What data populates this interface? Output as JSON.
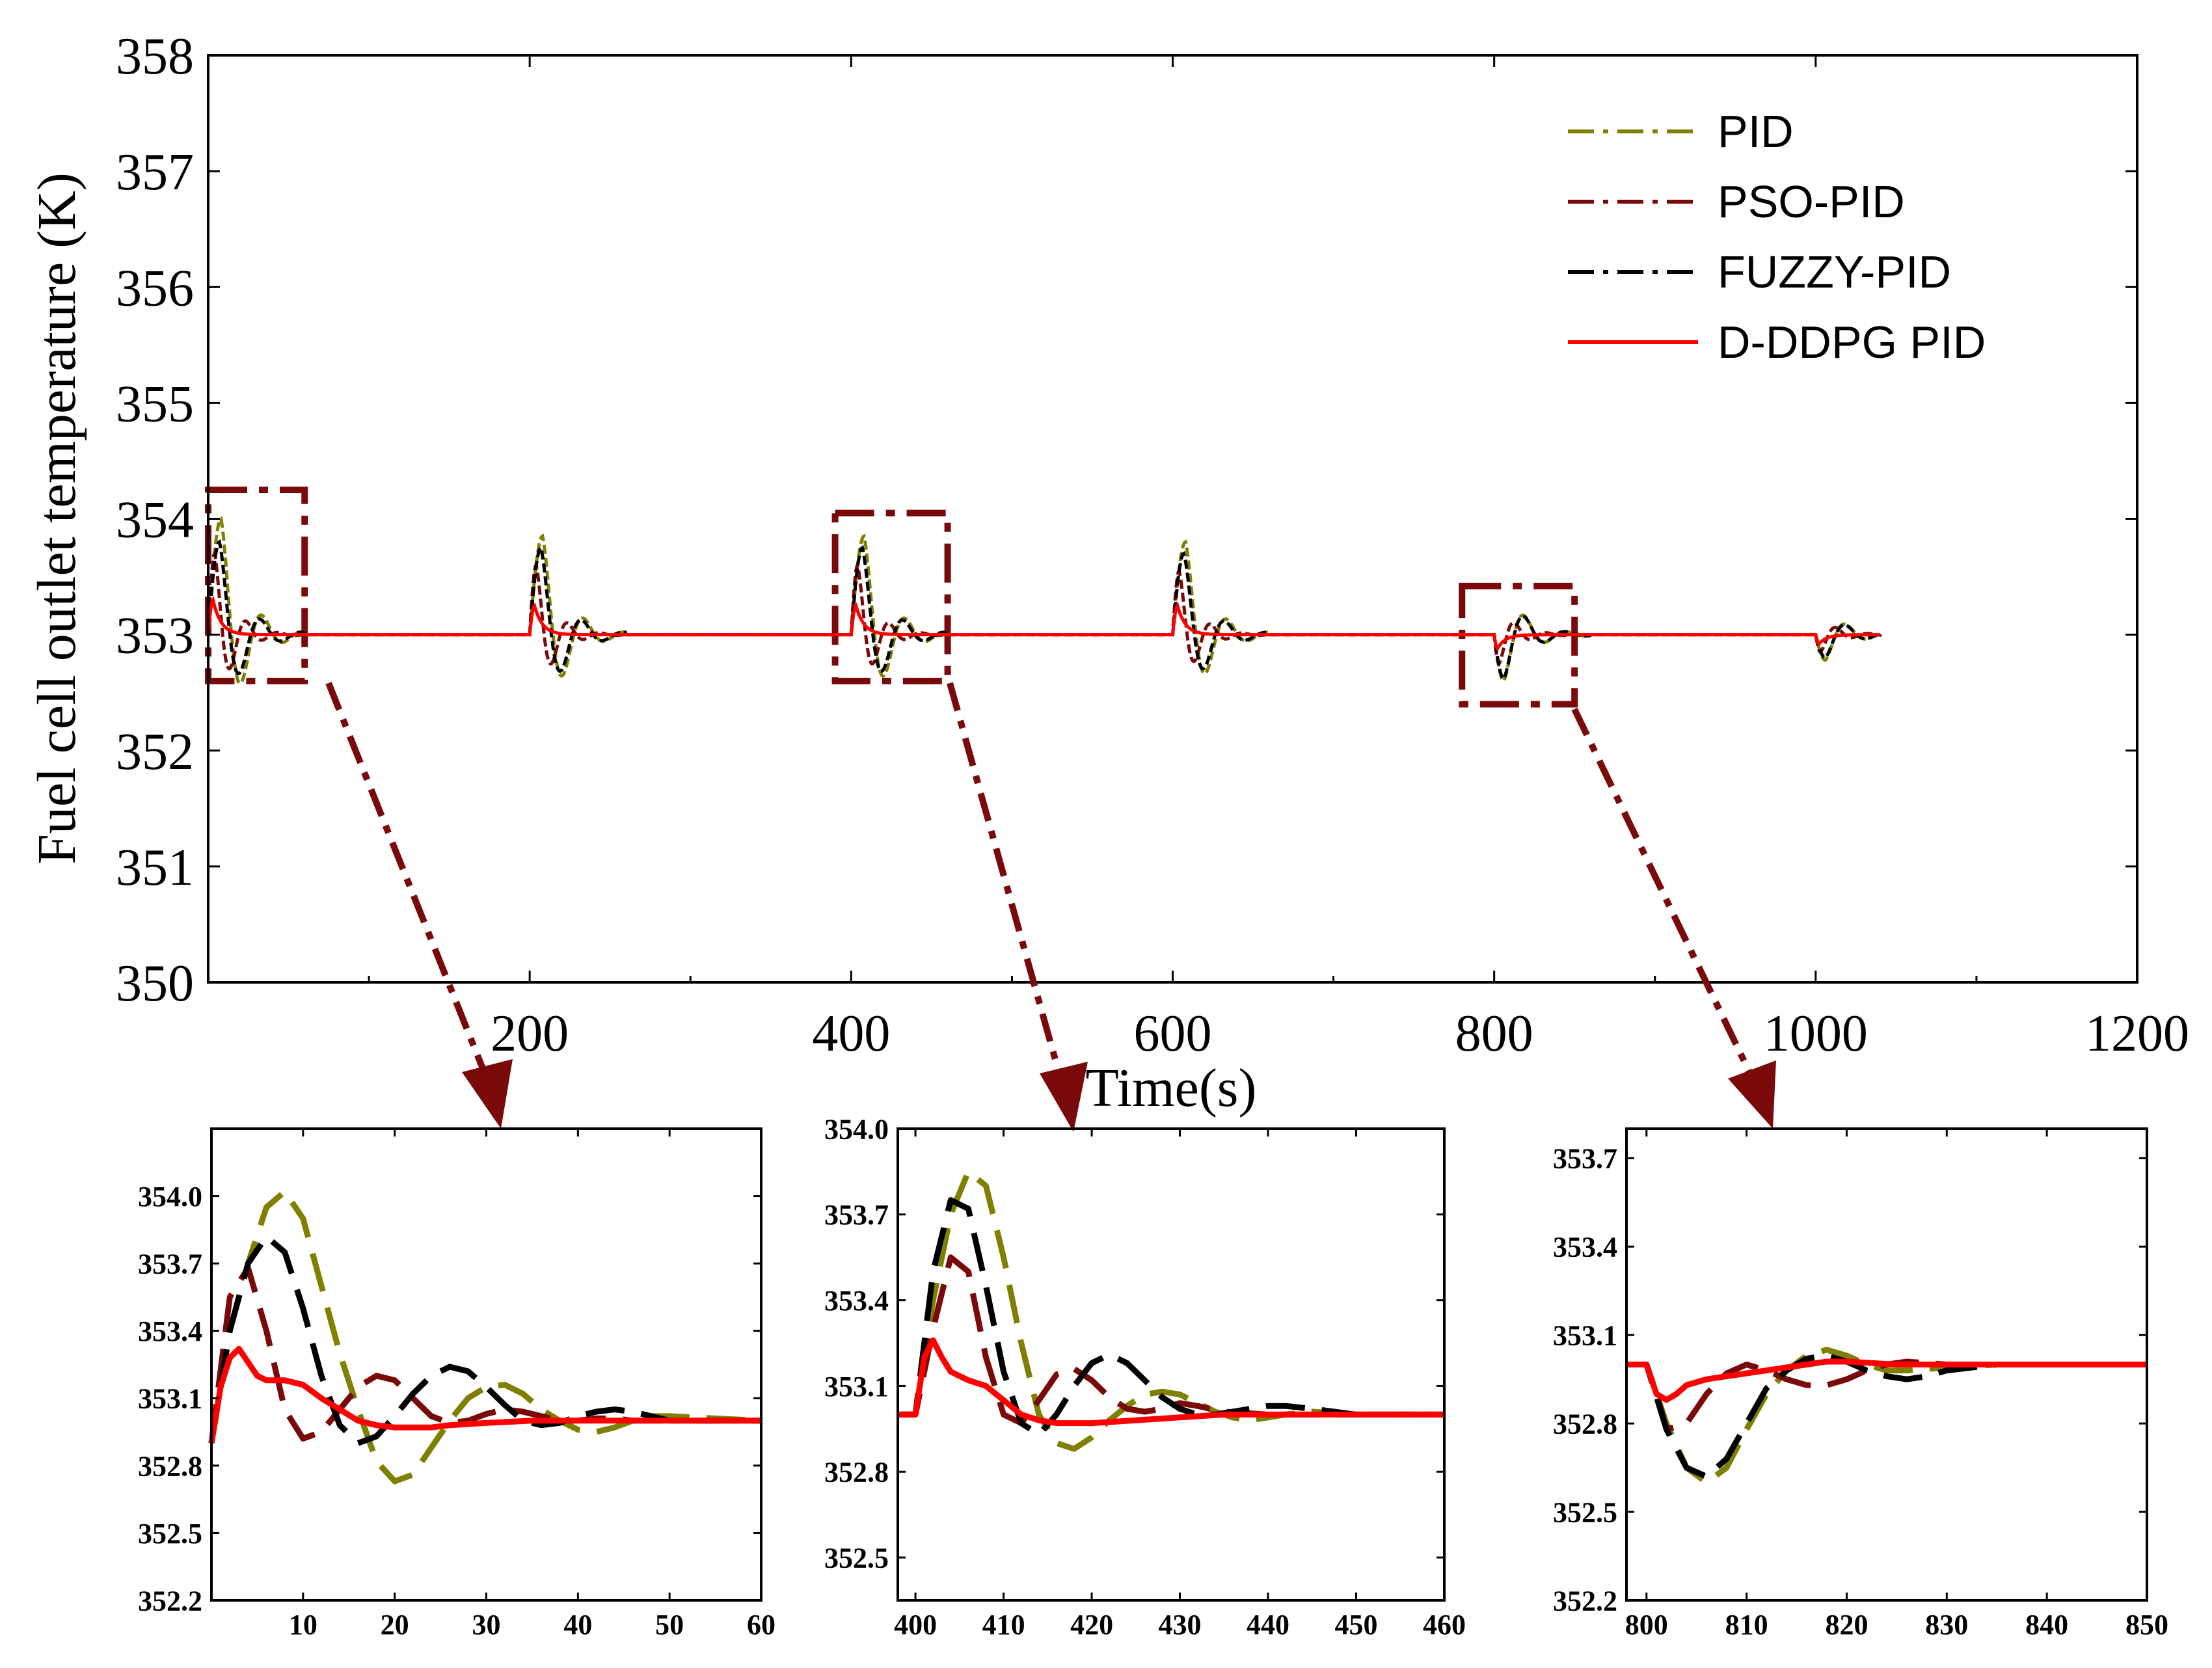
{
  "colors": {
    "PID": "#808000",
    "PSO-PID": "#7a0a0a",
    "FUZZY-PID": "#000000",
    "D-DDPG PID": "#ff0000",
    "zoom": "#7a0a0a"
  },
  "chart_data": [
    {
      "id": "main",
      "type": "line",
      "title": "",
      "xlabel": "Time(s)",
      "ylabel": "Fuel cell outlet temperature (K)",
      "xlim": [
        0,
        1200
      ],
      "ylim": [
        350,
        358
      ],
      "xticks": [
        200,
        400,
        600,
        800,
        1000,
        1200
      ],
      "xtick_labels": [
        "200",
        "400",
        "600",
        "800",
        "1000",
        "1200"
      ],
      "yticks": [
        350,
        351,
        352,
        353,
        354,
        355,
        356,
        357,
        358
      ],
      "ytick_labels": [
        "350",
        "351",
        "352",
        "353",
        "354",
        "355",
        "356",
        "357",
        "358"
      ],
      "legend": [
        "PID",
        "PSO-PID",
        "FUZZY-PID",
        "D-DDPG PID"
      ],
      "legend_position": "top-right",
      "setpoint": 353.0,
      "events": [
        {
          "t": 0,
          "PID": [
            1.0,
            8,
            26,
            4
          ],
          "PSO-PID": [
            0.7,
            4,
            20,
            3
          ],
          "FUZZY-PID": [
            0.8,
            7,
            26,
            3
          ],
          "D-DDPG PID": [
            0.3,
            3,
            13,
            0
          ]
        },
        {
          "t": 200,
          "PID": [
            0.85,
            8,
            26,
            4
          ],
          "PSO-PID": [
            0.6,
            4,
            20,
            3
          ],
          "FUZZY-PID": [
            0.75,
            7,
            26,
            3
          ],
          "D-DDPG PID": [
            0.25,
            3,
            13,
            0
          ]
        },
        {
          "t": 400,
          "PID": [
            0.85,
            8,
            26,
            4
          ],
          "PSO-PID": [
            0.6,
            4,
            20,
            3
          ],
          "FUZZY-PID": [
            0.75,
            7,
            26,
            3
          ],
          "D-DDPG PID": [
            0.25,
            3,
            13,
            0
          ]
        },
        {
          "t": 600,
          "PID": [
            0.8,
            8,
            26,
            4
          ],
          "PSO-PID": [
            0.55,
            4,
            20,
            3
          ],
          "FUZZY-PID": [
            0.7,
            7,
            26,
            3
          ],
          "D-DDPG PID": [
            0.25,
            3,
            13,
            0
          ]
        },
        {
          "t": 800,
          "PID": [
            -0.4,
            6,
            26,
            2
          ],
          "PSO-PID": [
            -0.25,
            3,
            20,
            2
          ],
          "FUZZY-PID": [
            -0.38,
            6,
            26,
            2
          ],
          "D-DDPG PID": [
            -0.12,
            2,
            13,
            0
          ]
        },
        {
          "t": 1000,
          "PID": [
            -0.22,
            6,
            26,
            2
          ],
          "PSO-PID": [
            -0.15,
            3,
            20,
            2
          ],
          "FUZZY-PID": [
            -0.2,
            6,
            26,
            2
          ],
          "D-DDPG PID": [
            -0.08,
            2,
            13,
            0
          ]
        }
      ],
      "zoom_boxes": [
        {
          "xlim": [
            0,
            60
          ],
          "ylim": [
            352.6,
            354.25
          ]
        },
        {
          "xlim": [
            390,
            460
          ],
          "ylim": [
            352.6,
            354.05
          ]
        },
        {
          "xlim": [
            780,
            850
          ],
          "ylim": [
            352.4,
            353.42
          ]
        }
      ]
    },
    {
      "id": "inset1",
      "type": "line",
      "xlim": [
        0,
        60
      ],
      "ylim": [
        352.2,
        354.3
      ],
      "xticks": [
        10,
        20,
        30,
        40,
        50,
        60
      ],
      "xtick_labels": [
        "10",
        "20",
        "30",
        "40",
        "50",
        "60"
      ],
      "yticks": [
        352.2,
        352.5,
        352.8,
        353.1,
        353.4,
        353.7,
        354.0
      ],
      "ytick_labels": [
        "352.2",
        "352.5",
        "352.8",
        "353.1",
        "353.4",
        "353.7",
        "354.0"
      ],
      "series": [
        {
          "name": "PID",
          "x": [
            0,
            2,
            4,
            6,
            8,
            10,
            12,
            14,
            16,
            18,
            20,
            22,
            24,
            26,
            28,
            30,
            32,
            34,
            36,
            38,
            40,
            42,
            44,
            46,
            48,
            50,
            55,
            60
          ],
          "y": [
            352.9,
            353.4,
            353.7,
            353.95,
            354.02,
            353.9,
            353.6,
            353.3,
            353.05,
            352.82,
            352.73,
            352.76,
            352.88,
            353.0,
            353.1,
            353.15,
            353.16,
            353.12,
            353.05,
            353.0,
            352.96,
            352.95,
            352.97,
            353.0,
            353.02,
            353.02,
            353.01,
            353.0
          ]
        },
        {
          "name": "PSO-PID",
          "x": [
            0,
            2,
            4,
            6,
            8,
            10,
            12,
            14,
            16,
            18,
            20,
            22,
            24,
            26,
            28,
            30,
            32,
            34,
            36,
            38,
            40,
            42,
            44,
            46,
            48,
            50,
            55,
            60
          ],
          "y": [
            352.9,
            353.55,
            353.68,
            353.4,
            353.05,
            352.92,
            352.95,
            353.05,
            353.15,
            353.2,
            353.18,
            353.1,
            353.02,
            352.99,
            353.0,
            353.03,
            353.05,
            353.04,
            353.02,
            353.0,
            353.0,
            353.01,
            353.01,
            353.0,
            353.0,
            353.0,
            353.0,
            353.0
          ]
        },
        {
          "name": "FUZZY-PID",
          "x": [
            0,
            2,
            4,
            6,
            8,
            10,
            12,
            14,
            16,
            18,
            20,
            22,
            24,
            26,
            28,
            30,
            32,
            34,
            36,
            38,
            40,
            42,
            44,
            46,
            48,
            50,
            55,
            60
          ],
          "y": [
            352.9,
            353.4,
            353.7,
            353.82,
            353.75,
            353.5,
            353.2,
            352.98,
            352.9,
            352.93,
            353.02,
            353.12,
            353.2,
            353.24,
            353.22,
            353.15,
            353.07,
            353.0,
            352.98,
            352.99,
            353.02,
            353.04,
            353.05,
            353.04,
            353.02,
            353.0,
            353.0,
            353.0
          ]
        },
        {
          "name": "D-DDPG PID",
          "x": [
            0,
            1,
            2,
            3,
            4,
            5,
            6,
            8,
            10,
            12,
            14,
            16,
            18,
            20,
            22,
            24,
            26,
            30,
            35,
            40,
            45,
            50,
            55,
            60
          ],
          "y": [
            352.9,
            353.15,
            353.28,
            353.32,
            353.26,
            353.2,
            353.18,
            353.18,
            353.16,
            353.1,
            353.05,
            353.0,
            352.98,
            352.97,
            352.97,
            352.97,
            352.98,
            352.99,
            353.0,
            353.0,
            353.0,
            353.0,
            353.0,
            353.0
          ]
        }
      ]
    },
    {
      "id": "inset2",
      "type": "line",
      "xlim": [
        398,
        460
      ],
      "ylim": [
        352.35,
        354.0
      ],
      "xticks": [
        400,
        410,
        420,
        430,
        440,
        450,
        460
      ],
      "xtick_labels": [
        "400",
        "410",
        "420",
        "430",
        "440",
        "450",
        "460"
      ],
      "yticks": [
        352.5,
        352.8,
        353.1,
        353.4,
        353.7,
        354.0
      ],
      "ytick_labels": [
        "352.5",
        "352.8",
        "353.1",
        "353.4",
        "353.7",
        "354.0"
      ],
      "series": [
        {
          "name": "PID",
          "x": [
            398,
            400,
            402,
            404,
            406,
            408,
            410,
            412,
            414,
            416,
            418,
            420,
            422,
            424,
            426,
            428,
            430,
            432,
            434,
            436,
            438,
            440,
            442,
            445,
            450,
            455,
            460
          ],
          "y": [
            353.0,
            353.0,
            353.4,
            353.7,
            353.85,
            353.8,
            353.55,
            353.25,
            353.0,
            352.9,
            352.88,
            352.92,
            352.98,
            353.03,
            353.07,
            353.08,
            353.07,
            353.04,
            353.01,
            352.99,
            352.98,
            352.99,
            353.0,
            353.01,
            353.0,
            353.0,
            353.0
          ]
        },
        {
          "name": "PSO-PID",
          "x": [
            398,
            400,
            402,
            404,
            406,
            408,
            410,
            412,
            414,
            416,
            418,
            420,
            422,
            424,
            426,
            428,
            430,
            432,
            435,
            440,
            445,
            450,
            455,
            460
          ],
          "y": [
            353.0,
            353.0,
            353.3,
            353.55,
            353.5,
            353.2,
            353.0,
            352.97,
            353.05,
            353.14,
            353.16,
            353.12,
            353.06,
            353.02,
            353.01,
            353.02,
            353.04,
            353.03,
            353.01,
            353.0,
            353.0,
            353.0,
            353.0,
            353.0
          ]
        },
        {
          "name": "FUZZY-PID",
          "x": [
            398,
            400,
            402,
            404,
            406,
            408,
            410,
            412,
            414,
            416,
            418,
            420,
            422,
            424,
            426,
            428,
            430,
            432,
            434,
            436,
            438,
            440,
            442,
            445,
            450,
            455,
            460
          ],
          "y": [
            353.0,
            353.0,
            353.5,
            353.75,
            353.72,
            353.45,
            353.15,
            352.97,
            352.93,
            353.0,
            353.1,
            353.18,
            353.21,
            353.18,
            353.12,
            353.06,
            353.02,
            353.0,
            353.0,
            353.01,
            353.02,
            353.03,
            353.03,
            353.02,
            353.0,
            353.0,
            353.0
          ]
        },
        {
          "name": "D-DDPG PID",
          "x": [
            398,
            400,
            401,
            402,
            403,
            404,
            406,
            408,
            410,
            412,
            414,
            416,
            418,
            420,
            425,
            430,
            435,
            440,
            450,
            460
          ],
          "y": [
            353.0,
            353.0,
            353.2,
            353.26,
            353.2,
            353.15,
            353.12,
            353.1,
            353.05,
            353.0,
            352.98,
            352.97,
            352.97,
            352.97,
            352.98,
            352.99,
            353.0,
            353.0,
            353.0,
            353.0
          ]
        }
      ]
    },
    {
      "id": "inset3",
      "type": "line",
      "xlim": [
        798,
        850
      ],
      "ylim": [
        352.2,
        353.8
      ],
      "xticks": [
        800,
        810,
        820,
        830,
        840,
        850
      ],
      "xtick_labels": [
        "800",
        "810",
        "820",
        "830",
        "840",
        "850"
      ],
      "yticks": [
        352.2,
        352.5,
        352.8,
        353.1,
        353.4,
        353.7
      ],
      "ytick_labels": [
        "352.2",
        "352.5",
        "352.8",
        "353.1",
        "353.4",
        "353.7"
      ],
      "series": [
        {
          "name": "PID",
          "x": [
            798,
            800,
            802,
            804,
            806,
            808,
            810,
            812,
            814,
            816,
            818,
            820,
            822,
            824,
            826,
            830,
            835,
            840,
            845,
            850
          ],
          "y": [
            353.0,
            353.0,
            352.8,
            352.65,
            352.6,
            352.65,
            352.78,
            352.9,
            352.98,
            353.03,
            353.05,
            353.03,
            353.0,
            352.98,
            352.98,
            352.99,
            353.0,
            353.0,
            353.0,
            353.0
          ]
        },
        {
          "name": "PSO-PID",
          "x": [
            798,
            800,
            801,
            802,
            804,
            806,
            808,
            810,
            812,
            814,
            816,
            818,
            820,
            822,
            824,
            826,
            830,
            835,
            840,
            845,
            850
          ],
          "y": [
            353.0,
            353.0,
            352.9,
            352.78,
            352.8,
            352.9,
            352.97,
            353.0,
            352.98,
            352.95,
            352.93,
            352.93,
            352.95,
            352.98,
            353.0,
            353.01,
            353.0,
            353.0,
            353.0,
            353.0,
            353.0
          ]
        },
        {
          "name": "FUZZY-PID",
          "x": [
            798,
            800,
            802,
            804,
            806,
            808,
            810,
            812,
            814,
            816,
            818,
            820,
            822,
            824,
            826,
            828,
            830,
            835,
            840,
            845,
            850
          ],
          "y": [
            353.0,
            353.0,
            352.78,
            352.65,
            352.62,
            352.68,
            352.8,
            352.92,
            352.98,
            353.02,
            353.03,
            353.01,
            352.98,
            352.96,
            352.95,
            352.96,
            352.98,
            353.0,
            353.0,
            353.0,
            353.0
          ]
        },
        {
          "name": "D-DDPG PID",
          "x": [
            798,
            800,
            801,
            802,
            803,
            804,
            806,
            808,
            810,
            812,
            814,
            816,
            818,
            820,
            825,
            830,
            840,
            850
          ],
          "y": [
            353.0,
            353.0,
            352.9,
            352.88,
            352.9,
            352.93,
            352.95,
            352.96,
            352.97,
            352.98,
            352.99,
            353.0,
            353.01,
            353.01,
            353.0,
            353.0,
            353.0,
            353.0
          ]
        }
      ]
    }
  ]
}
